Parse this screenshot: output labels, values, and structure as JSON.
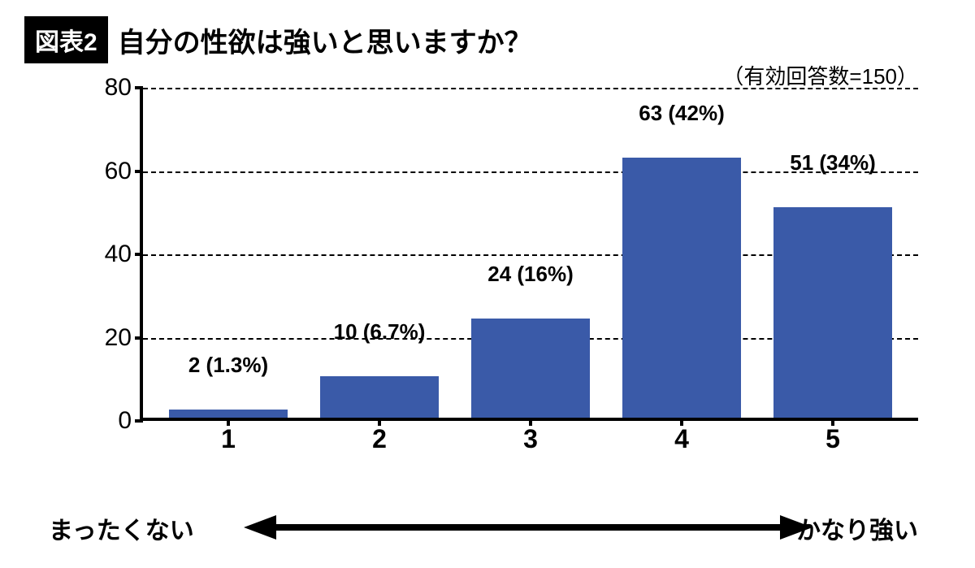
{
  "header": {
    "badge": "図表2",
    "title": "自分の性欲は強いと思いますか？"
  },
  "chart": {
    "type": "bar",
    "note": "（有効回答数=150）",
    "ylim": [
      0,
      80
    ],
    "yticks": [
      0,
      20,
      40,
      60,
      80
    ],
    "categories": [
      "1",
      "2",
      "3",
      "4",
      "5"
    ],
    "values": [
      2,
      10,
      24,
      63,
      51
    ],
    "value_labels": [
      "2 (1.3%)",
      "10 (6.7%)",
      "24 (16%)",
      "63 (42%)",
      "51 (34%)"
    ],
    "bar_color": "#3a5aa8",
    "grid_color": "#000000",
    "axis_color": "#000000",
    "background_color": "#ffffff",
    "bar_width": 0.78,
    "title_fontsize": 34,
    "label_fontsize": 26,
    "tick_fontsize": 30
  },
  "scale": {
    "left_label": "まったくない",
    "right_label": "かなり強い",
    "arrow_color": "#000000"
  }
}
